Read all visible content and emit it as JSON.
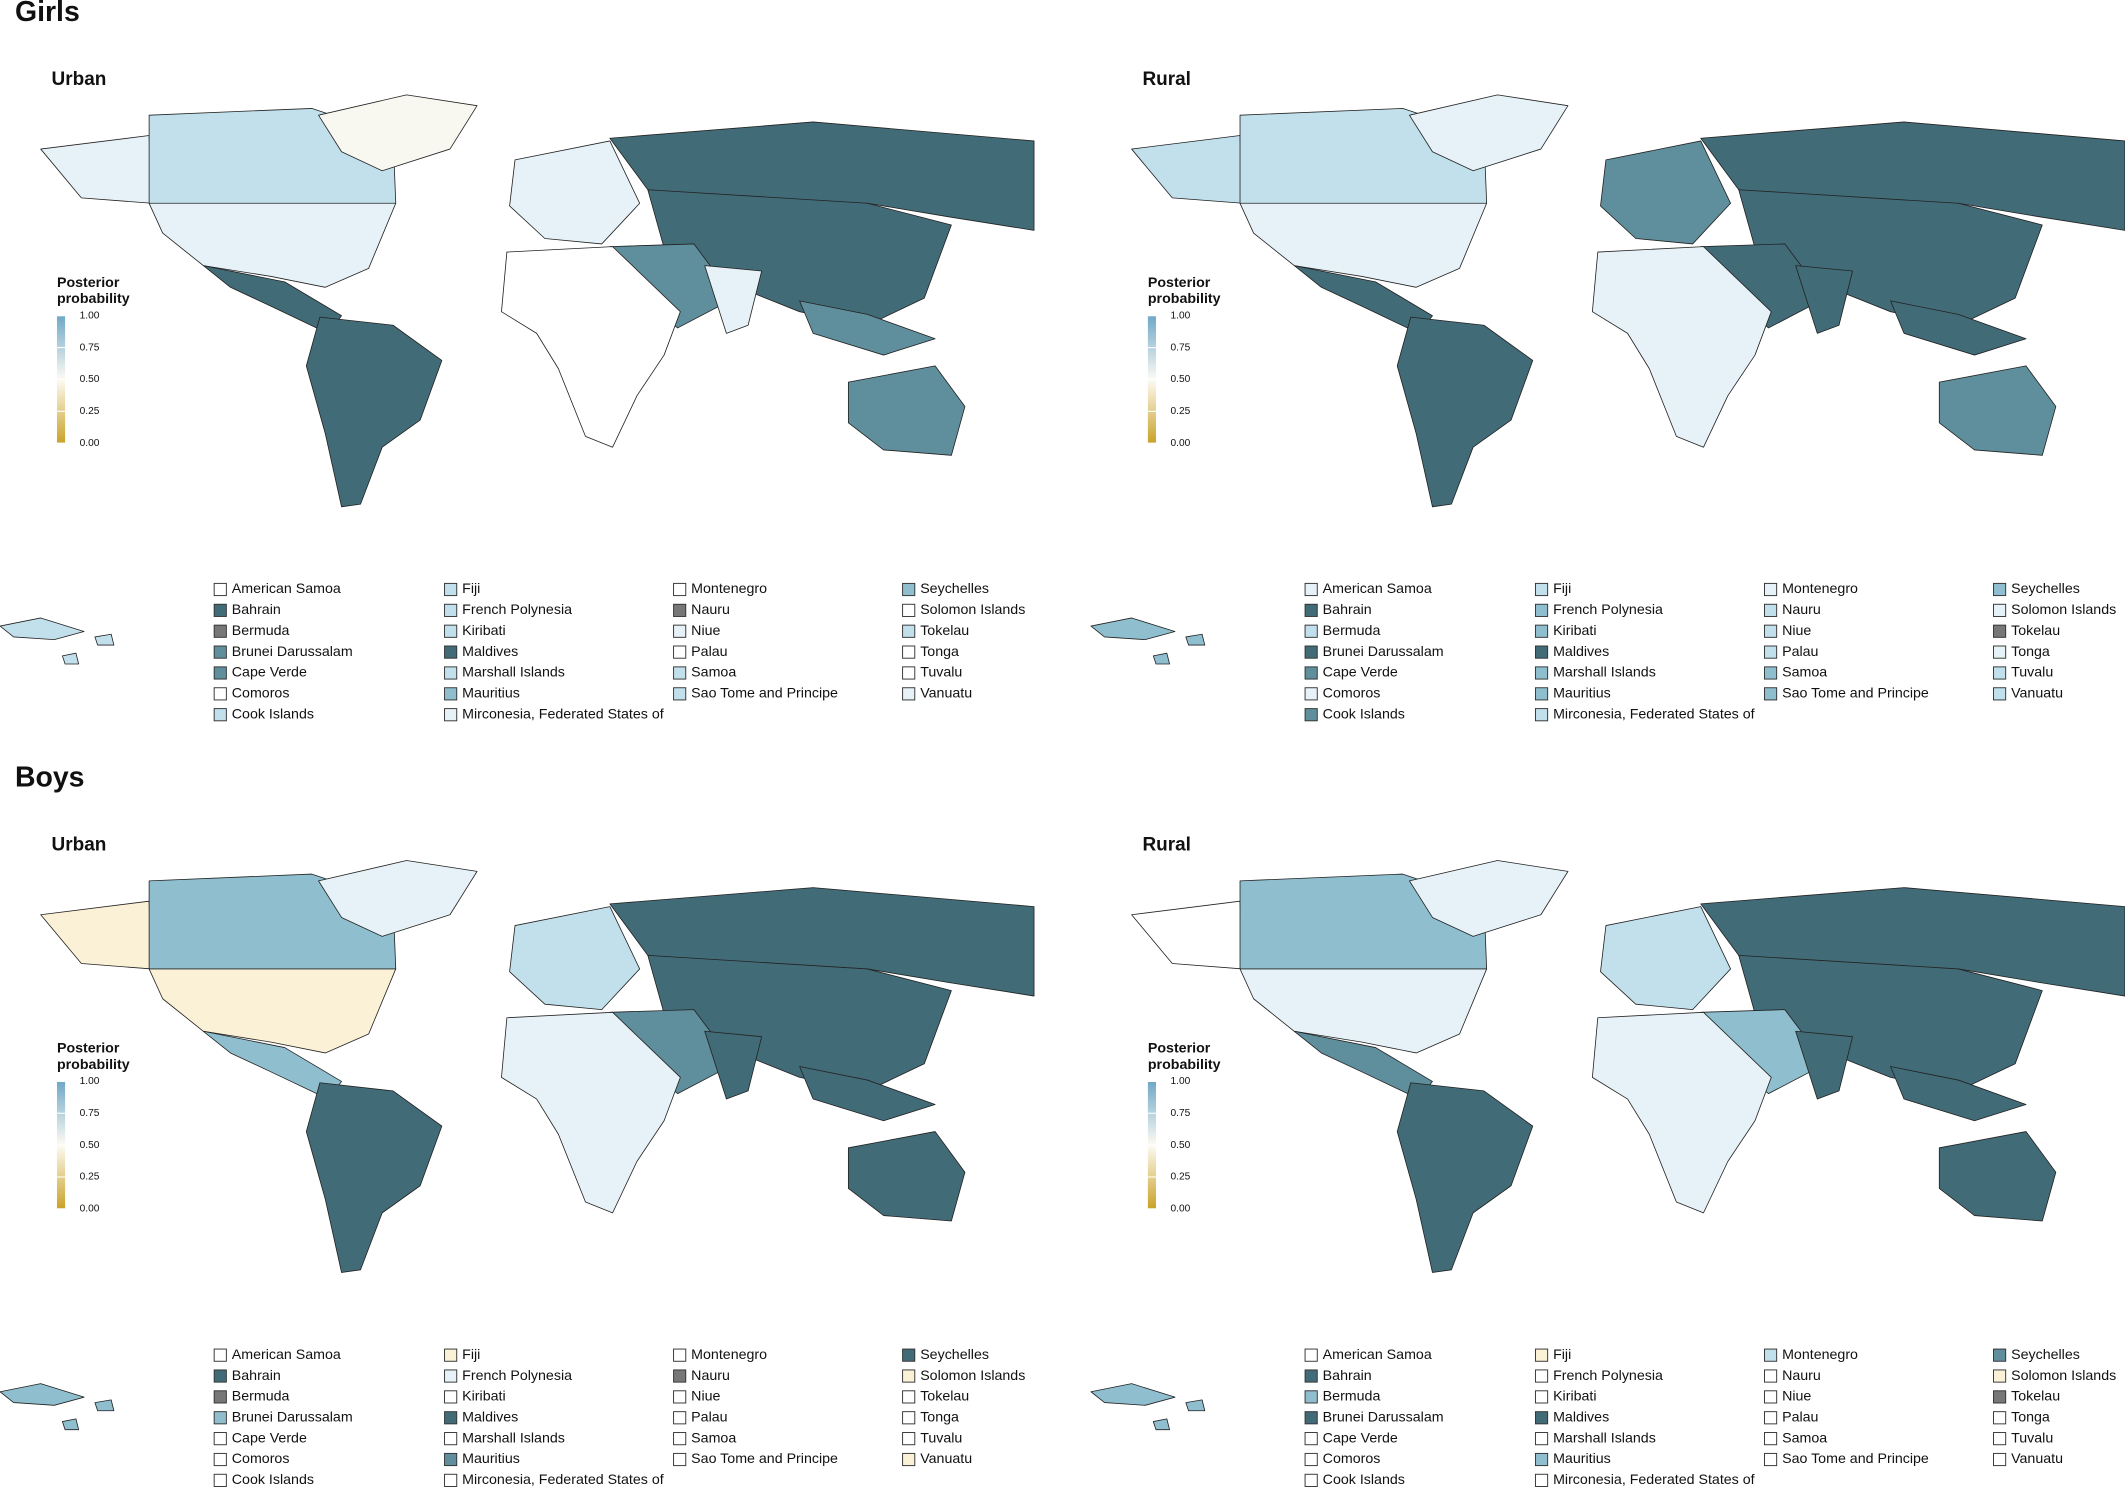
{
  "sections": [
    {
      "title": "Girls",
      "panels": [
        {
          "title": "Urban",
          "legend_title": [
            "Posterior",
            "probability"
          ],
          "scale_ticks": [
            {
              "value": 0,
              "label": "0.00"
            },
            {
              "value": 0.25,
              "label": "0.25"
            },
            {
              "value": 0.5,
              "label": "0.50"
            },
            {
              "value": 0.75,
              "label": "0.75"
            },
            {
              "value": 1,
              "label": "1.00"
            }
          ],
          "swatch_colors": [
            "#ffffff",
            "#426b78",
            "#777777",
            "#5f8e9c",
            "#5f8e9c",
            "#ffffff",
            "#c2e0ec",
            "#c2e0ec",
            "#c2e0ec",
            "#c2e0ec",
            "#426b78",
            "#c2e0ec",
            "#8fbfcf",
            "#e6f2f7",
            "#ffffff",
            "#777777",
            "#e6f2f7",
            "#ffffff",
            "#c2e0ec",
            "#c2e0ec",
            "#8fbfcf",
            "#ffffff",
            "#c2e0ec",
            "#ffffff",
            "#ffffff",
            "#e6f2f7"
          ]
        },
        {
          "title": "Rural",
          "legend_title": [
            "Posterior",
            "probability"
          ],
          "scale_ticks": [
            {
              "value": 0,
              "label": "0.00"
            },
            {
              "value": 0.25,
              "label": "0.25"
            },
            {
              "value": 0.5,
              "label": "0.50"
            },
            {
              "value": 0.75,
              "label": "0.75"
            },
            {
              "value": 1,
              "label": "1.00"
            }
          ],
          "swatch_colors": [
            "#e6f2f7",
            "#426b78",
            "#c2e0ec",
            "#426b78",
            "#5f8e9c",
            "#e6f2f7",
            "#5f8e9c",
            "#c2e0ec",
            "#8fbfcf",
            "#8fbfcf",
            "#426b78",
            "#8fbfcf",
            "#8fbfcf",
            "#c2e0ec",
            "#e6f2f7",
            "#c2e0ec",
            "#c2e0ec",
            "#c2e0ec",
            "#8fbfcf",
            "#8fbfcf",
            "#8fbfcf",
            "#e6f2f7",
            "#777777",
            "#e6f2f7",
            "#c2e0ec",
            "#c2e0ec"
          ]
        }
      ]
    },
    {
      "title": "Boys",
      "panels": [
        {
          "title": "Urban",
          "legend_title": [
            "Posterior",
            "probability"
          ],
          "scale_ticks": [
            {
              "value": 0,
              "label": "0.00"
            },
            {
              "value": 0.25,
              "label": "0.25"
            },
            {
              "value": 0.5,
              "label": "0.50"
            },
            {
              "value": 0.75,
              "label": "0.75"
            },
            {
              "value": 1,
              "label": "1.00"
            }
          ],
          "swatch_colors": [
            "#ffffff",
            "#426b78",
            "#777777",
            "#8fbfcf",
            "#ffffff",
            "#ffffff",
            "#ffffff",
            "#fbf1d6",
            "#e6f2f7",
            "#ffffff",
            "#426b78",
            "#ffffff",
            "#5f8e9c",
            "#ffffff",
            "#ffffff",
            "#777777",
            "#ffffff",
            "#ffffff",
            "#ffffff",
            "#ffffff",
            "#426b78",
            "#fbf1d6",
            "#ffffff",
            "#ffffff",
            "#ffffff",
            "#fbf1d6"
          ]
        },
        {
          "title": "Rural",
          "legend_title": [
            "Posterior",
            "probability"
          ],
          "scale_ticks": [
            {
              "value": 0,
              "label": "0.00"
            },
            {
              "value": 0.25,
              "label": "0.25"
            },
            {
              "value": 0.5,
              "label": "0.50"
            },
            {
              "value": 0.75,
              "label": "0.75"
            },
            {
              "value": 1,
              "label": "1.00"
            }
          ],
          "swatch_colors": [
            "#ffffff",
            "#426b78",
            "#8fbfcf",
            "#426b78",
            "#ffffff",
            "#ffffff",
            "#ffffff",
            "#fbf1d6",
            "#ffffff",
            "#ffffff",
            "#426b78",
            "#ffffff",
            "#8fbfcf",
            "#ffffff",
            "#c2e0ec",
            "#ffffff",
            "#ffffff",
            "#ffffff",
            "#ffffff",
            "#ffffff",
            "#5f8e9c",
            "#fbf1d6",
            "#777777",
            "#ffffff",
            "#ffffff",
            "#ffffff"
          ]
        }
      ]
    }
  ],
  "small_countries": [
    "American Samoa",
    "Bahrain",
    "Bermuda",
    "Brunei Darussalam",
    "Cape Verde",
    "Comoros",
    "Cook Islands",
    "Fiji",
    "French Polynesia",
    "Kiribati",
    "Maldives",
    "Marshall Islands",
    "Mauritius",
    "Mirconesia, Federated States of",
    "Montenegro",
    "Nauru",
    "Niue",
    "Palau",
    "Samoa",
    "Sao Tome and Principe",
    "Seychelles",
    "Solomon Islands",
    "Tokelau",
    "Tonga",
    "Tuvalu",
    "Vanuatu"
  ]
}
